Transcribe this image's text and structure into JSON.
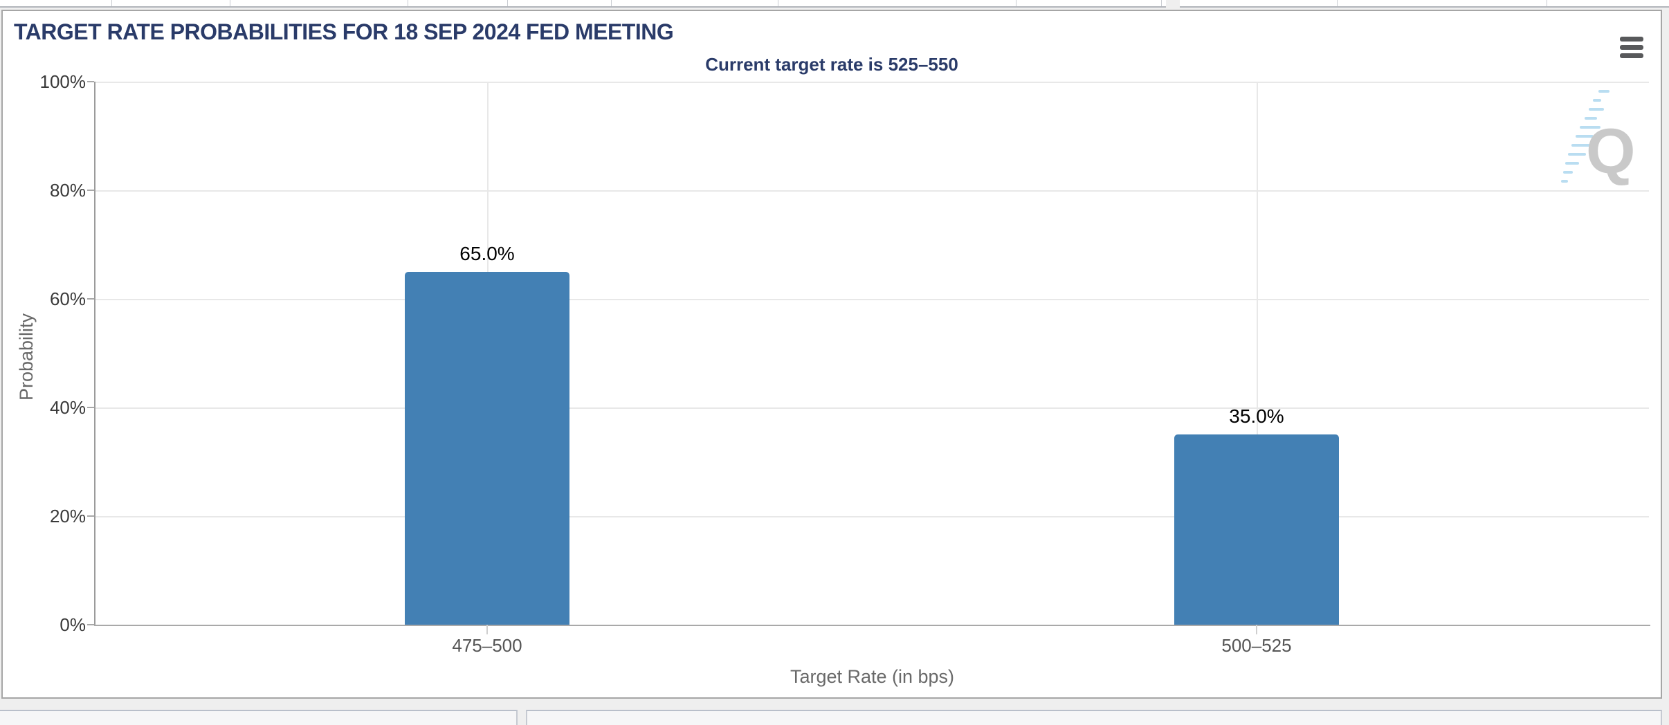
{
  "chart_data": {
    "type": "bar",
    "title": "TARGET RATE PROBABILITIES FOR 18 SEP 2024 FED MEETING",
    "subtitle": "Current target rate is 525–550",
    "categories": [
      "475–500",
      "500–525"
    ],
    "series": [
      {
        "name": "Probability",
        "values": [
          65.0,
          35.0
        ]
      }
    ],
    "data_labels": [
      "65.0%",
      "35.0%"
    ],
    "xlabel": "Target Rate (in bps)",
    "ylabel": "Probability",
    "ylim": [
      0,
      100
    ],
    "ytick_labels": [
      "100%",
      "80%",
      "60%",
      "40%",
      "20%",
      "0%"
    ],
    "grid": true,
    "legend_position": "none",
    "bar_color": "#4380b4"
  },
  "icons": {
    "menu": "hamburger-icon",
    "watermark_letter": "Q"
  },
  "colors": {
    "title_text": "#2a3b69",
    "bar": "#4380b4",
    "axis_line": "#9b9b9b",
    "gridline": "#e8e8e8",
    "ytick_label": "#3a3a3a",
    "category_label": "#555555",
    "axis_title": "#696969",
    "data_label": "#000000",
    "panel_border": "#a6a6a6",
    "page_background": "#efefef",
    "watermark_gray": "#c9c9c9",
    "watermark_blue": "#b9ddf1"
  }
}
